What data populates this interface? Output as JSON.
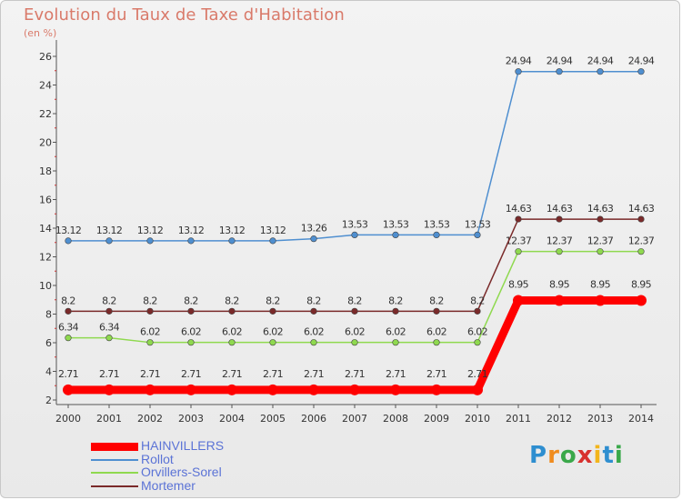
{
  "title": "Evolution du Taux de Taxe d'Habitation",
  "subtitle": "(en %)",
  "logo": {
    "text": "Proxiti",
    "letters": [
      "P",
      "r",
      "o",
      "x",
      "i",
      "t",
      "i"
    ],
    "colors": [
      "#2e8ed0",
      "#f08c1e",
      "#3aa84a",
      "#d8312e",
      "#f3b51b",
      "#2e8ed0",
      "#3aa84a"
    ]
  },
  "chart_data": {
    "type": "line",
    "x": [
      "2000",
      "2001",
      "2002",
      "2003",
      "2004",
      "2005",
      "2006",
      "2007",
      "2008",
      "2009",
      "2010",
      "2011",
      "2012",
      "2013",
      "2014"
    ],
    "ylim": [
      2,
      26
    ],
    "yticks": [
      "2",
      "4",
      "6",
      "8",
      "10",
      "12",
      "14",
      "16",
      "18",
      "20",
      "22",
      "24",
      "26"
    ],
    "grid": false,
    "legend_position": "bottom-left",
    "series": [
      {
        "name": "HAINVILLERS",
        "color": "#ff0000",
        "values": [
          2.71,
          2.71,
          2.71,
          2.71,
          2.71,
          2.71,
          2.71,
          2.71,
          2.71,
          2.71,
          2.71,
          8.95,
          8.95,
          8.95,
          8.95
        ],
        "labels": [
          "2.71",
          "2.71",
          "2.71",
          "2.71",
          "2.71",
          "2.71",
          "2.71",
          "2.71",
          "2.71",
          "2.71",
          "2.71",
          "8.95",
          "8.95",
          "8.95",
          "8.95"
        ],
        "emphasis": true
      },
      {
        "name": "Rollot",
        "color": "#4f8fd0",
        "values": [
          13.12,
          13.12,
          13.12,
          13.12,
          13.12,
          13.12,
          13.26,
          13.53,
          13.53,
          13.53,
          13.53,
          24.94,
          24.94,
          24.94,
          24.94
        ],
        "labels": [
          "13.12",
          "13.12",
          "13.12",
          "13.12",
          "13.12",
          "13.12",
          "13.26",
          "13.53",
          "13.53",
          "13.53",
          "13.53",
          "24.94",
          "24.94",
          "24.94",
          "24.94"
        ],
        "emphasis": false
      },
      {
        "name": "Orvillers-Sorel",
        "color": "#8fd94f",
        "values": [
          6.34,
          6.34,
          6.02,
          6.02,
          6.02,
          6.02,
          6.02,
          6.02,
          6.02,
          6.02,
          6.02,
          12.37,
          12.37,
          12.37,
          12.37
        ],
        "labels": [
          "6.34",
          "6.34",
          "6.02",
          "6.02",
          "6.02",
          "6.02",
          "6.02",
          "6.02",
          "6.02",
          "6.02",
          "6.02",
          "12.37",
          "12.37",
          "12.37",
          "12.37"
        ],
        "emphasis": false
      },
      {
        "name": "Mortemer",
        "color": "#7a2a2a",
        "values": [
          8.2,
          8.2,
          8.2,
          8.2,
          8.2,
          8.2,
          8.2,
          8.2,
          8.2,
          8.2,
          8.2,
          14.63,
          14.63,
          14.63,
          14.63
        ],
        "labels": [
          "8.2",
          "8.2",
          "8.2",
          "8.2",
          "8.2",
          "8.2",
          "8.2",
          "8.2",
          "8.2",
          "8.2",
          "8.2",
          "14.63",
          "14.63",
          "14.63",
          "14.63"
        ],
        "emphasis": false
      }
    ]
  }
}
